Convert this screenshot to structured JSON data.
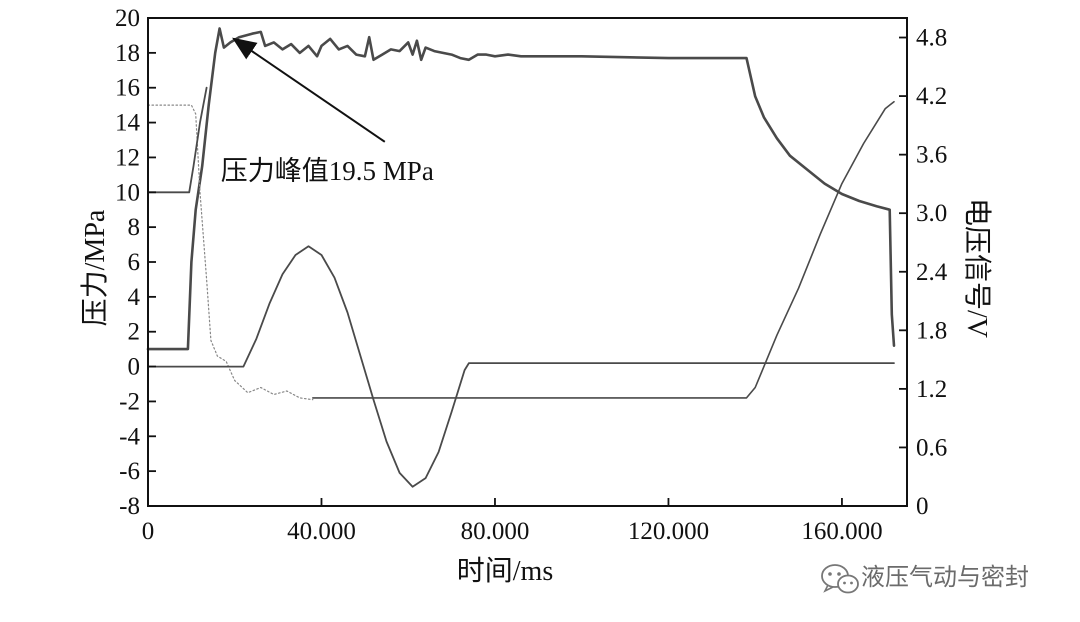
{
  "chart_data": {
    "type": "line",
    "title": "",
    "xlabel": "时间/ms",
    "ylabel_left": "压力/MPa",
    "ylabel_right": "电压信号/V",
    "xlim": [
      0,
      175000
    ],
    "ylim_left": [
      -8,
      20
    ],
    "ylim_right": [
      0,
      5.0
    ],
    "x_ticks": [
      0,
      40000,
      80000,
      120000,
      160000
    ],
    "x_tick_labels": [
      "0",
      "40.000",
      "80.000",
      "120.000",
      "160.000"
    ],
    "y_left_ticks": [
      -8,
      -6,
      -4,
      -2,
      0,
      2,
      4,
      6,
      8,
      10,
      12,
      14,
      16,
      18,
      20
    ],
    "y_left_tick_labels": [
      "-8",
      "-6",
      "-4",
      "-2",
      "0",
      "2",
      "4",
      "6",
      "8",
      "10",
      "12",
      "14",
      "16",
      "18",
      "20"
    ],
    "y_right_ticks": [
      0,
      0.6,
      1.2,
      1.8,
      2.4,
      3.0,
      3.6,
      4.2,
      4.8
    ],
    "y_right_tick_labels": [
      "0",
      "0.6",
      "1.2",
      "1.8",
      "2.4",
      "3.0",
      "3.6",
      "4.2",
      "4.8"
    ],
    "grid": false,
    "legend": "none",
    "annotation": {
      "text": "压力峰值19.5 MPa",
      "points_to": {
        "x": 17000,
        "y": 19.5,
        "axis": "left"
      },
      "label_at": {
        "x": 38000,
        "y": 10.6,
        "axis": "left"
      }
    },
    "series": [
      {
        "axis": "left",
        "color": "#4a4a4a",
        "style": "solid",
        "width": 2.6,
        "points": [
          [
            0,
            1.0
          ],
          [
            8000,
            1.0
          ],
          [
            9200,
            1.0
          ],
          [
            10000,
            6.0
          ],
          [
            11000,
            9.0
          ],
          [
            12500,
            11.5
          ],
          [
            14000,
            15.0
          ],
          [
            15500,
            18.0
          ],
          [
            16500,
            19.4
          ],
          [
            17500,
            18.3
          ],
          [
            19000,
            18.6
          ],
          [
            21000,
            18.9
          ],
          [
            24000,
            19.1
          ],
          [
            26000,
            19.2
          ],
          [
            27000,
            18.4
          ],
          [
            29000,
            18.6
          ],
          [
            31000,
            18.2
          ],
          [
            33000,
            18.5
          ],
          [
            35000,
            18.0
          ],
          [
            37000,
            18.4
          ],
          [
            39000,
            17.8
          ],
          [
            40000,
            18.4
          ],
          [
            42000,
            18.8
          ],
          [
            44000,
            18.2
          ],
          [
            46000,
            18.4
          ],
          [
            48000,
            17.9
          ],
          [
            50000,
            17.8
          ],
          [
            51000,
            18.9
          ],
          [
            52000,
            17.6
          ],
          [
            54000,
            17.9
          ],
          [
            56000,
            18.2
          ],
          [
            58000,
            18.1
          ],
          [
            60000,
            18.6
          ],
          [
            61000,
            17.9
          ],
          [
            62000,
            18.7
          ],
          [
            63000,
            17.6
          ],
          [
            64000,
            18.3
          ],
          [
            66000,
            18.1
          ],
          [
            68000,
            18.0
          ],
          [
            70000,
            17.9
          ],
          [
            72000,
            17.7
          ],
          [
            74000,
            17.6
          ],
          [
            76000,
            17.9
          ],
          [
            78000,
            17.9
          ],
          [
            80000,
            17.8
          ],
          [
            83000,
            17.9
          ],
          [
            86000,
            17.8
          ],
          [
            88000,
            17.8
          ],
          [
            100000,
            17.8
          ],
          [
            120000,
            17.7
          ],
          [
            138000,
            17.7
          ],
          [
            140000,
            15.5
          ],
          [
            142000,
            14.3
          ],
          [
            145000,
            13.1
          ],
          [
            148000,
            12.1
          ],
          [
            152000,
            11.3
          ],
          [
            156000,
            10.5
          ],
          [
            160000,
            9.9
          ],
          [
            164000,
            9.5
          ],
          [
            168000,
            9.2
          ],
          [
            171000,
            9.0
          ],
          [
            171500,
            3.0
          ],
          [
            172000,
            1.2
          ]
        ]
      },
      {
        "axis": "left",
        "color": "#888888",
        "style": "dotted",
        "width": 1.2,
        "points": [
          [
            0,
            15.0
          ],
          [
            10000,
            15.0
          ],
          [
            11000,
            14.5
          ],
          [
            12000,
            10.0
          ],
          [
            13500,
            5.0
          ],
          [
            14500,
            1.5
          ],
          [
            16000,
            0.6
          ],
          [
            18000,
            0.3
          ],
          [
            20000,
            -0.8
          ],
          [
            23000,
            -1.5
          ],
          [
            26000,
            -1.2
          ],
          [
            29000,
            -1.6
          ],
          [
            32000,
            -1.4
          ],
          [
            35000,
            -1.8
          ],
          [
            38000,
            -1.9
          ]
        ]
      },
      {
        "axis": "left",
        "color": "#4a4a4a",
        "style": "solid",
        "width": 1.6,
        "points": [
          [
            38000,
            -1.8
          ],
          [
            100000,
            -1.8
          ],
          [
            138000,
            -1.8
          ],
          [
            140000,
            -1.2
          ],
          [
            142000,
            0.0
          ],
          [
            145000,
            1.8
          ],
          [
            150000,
            4.5
          ],
          [
            155000,
            7.6
          ],
          [
            160000,
            10.5
          ],
          [
            165000,
            12.8
          ],
          [
            170000,
            14.8
          ],
          [
            172000,
            15.2
          ]
        ]
      },
      {
        "axis": "left",
        "color": "#4a4a4a",
        "style": "solid",
        "width": 1.8,
        "points": [
          [
            0,
            10.0
          ],
          [
            8000,
            10.0
          ],
          [
            9500,
            10.0
          ],
          [
            10500,
            11.5
          ],
          [
            12000,
            14.0
          ],
          [
            13500,
            16.0
          ]
        ]
      },
      {
        "axis": "left",
        "color": "#4a4a4a",
        "style": "solid",
        "width": 1.8,
        "points": [
          [
            0,
            0.0
          ],
          [
            22000,
            0.0
          ],
          [
            25000,
            1.6
          ],
          [
            28000,
            3.6
          ],
          [
            31000,
            5.3
          ],
          [
            34000,
            6.4
          ],
          [
            37000,
            6.9
          ],
          [
            40000,
            6.4
          ],
          [
            43000,
            5.1
          ],
          [
            46000,
            3.1
          ],
          [
            49000,
            0.6
          ],
          [
            52000,
            -1.9
          ],
          [
            55000,
            -4.3
          ],
          [
            58000,
            -6.1
          ],
          [
            61000,
            -6.9
          ],
          [
            64000,
            -6.4
          ],
          [
            67000,
            -4.9
          ],
          [
            70000,
            -2.6
          ],
          [
            73000,
            -0.2
          ],
          [
            74000,
            0.2
          ],
          [
            100000,
            0.2
          ],
          [
            140000,
            0.2
          ],
          [
            172000,
            0.2
          ]
        ]
      }
    ]
  },
  "watermark": {
    "icon": "wechat-icon",
    "text": "液压气动与密封"
  }
}
